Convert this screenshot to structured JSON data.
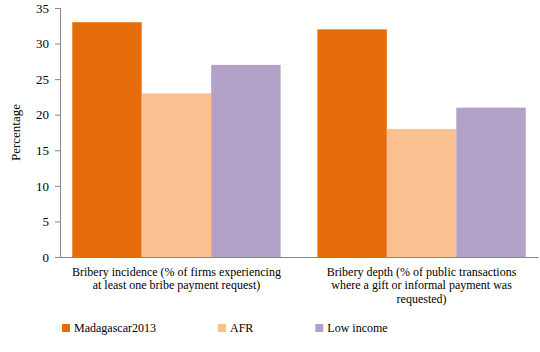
{
  "chart_data": {
    "type": "bar",
    "y_label": "Percentage",
    "categories": [
      "Bribery incidence (% of firms experiencing at least one bribe payment request)",
      "Bribery depth (% of public transactions where a gift or informal payment was requested)"
    ],
    "series": [
      {
        "name": "Madagascar2013",
        "color": "#e46c0a",
        "values": [
          33,
          32
        ]
      },
      {
        "name": "AFR",
        "color": "#fac090",
        "values": [
          23,
          18
        ]
      },
      {
        "name": "Low income",
        "color": "#b3a2c7",
        "values": [
          27,
          21
        ]
      }
    ],
    "ylim": [
      0,
      35
    ],
    "yticks": [
      0,
      5,
      10,
      15,
      20,
      25,
      30,
      35
    ],
    "grid": false,
    "legend": "bottom"
  }
}
